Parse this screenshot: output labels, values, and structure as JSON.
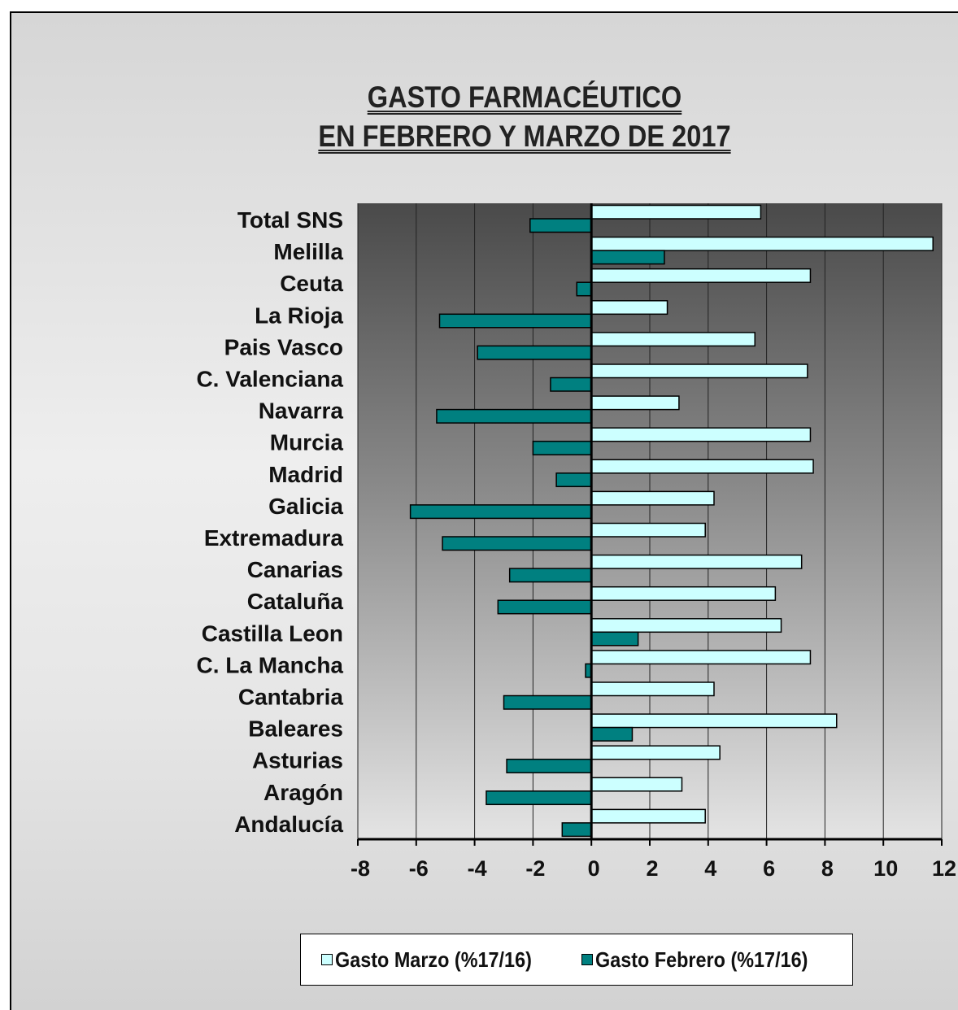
{
  "chart_data": {
    "type": "bar",
    "orientation": "horizontal",
    "title_lines": [
      "GASTO FARMACÉUTICO",
      "EN FEBRERO Y MARZO DE 2017"
    ],
    "categories": [
      "Total SNS",
      "Melilla",
      "Ceuta",
      "La Rioja",
      "Pais Vasco",
      "C. Valenciana",
      "Navarra",
      "Murcia",
      "Madrid",
      "Galicia",
      "Extremadura",
      "Canarias",
      "Cataluña",
      "Castilla Leon",
      "C. La Mancha",
      "Cantabria",
      "Baleares",
      "Asturias",
      "Aragón",
      "Andalucía"
    ],
    "series": [
      {
        "name": "Gasto Marzo  (%17/16)",
        "color": "#ccffff",
        "values": [
          5.8,
          11.7,
          7.5,
          2.6,
          5.6,
          7.4,
          3.0,
          7.5,
          7.6,
          4.2,
          3.9,
          7.2,
          6.3,
          6.5,
          7.5,
          4.2,
          8.4,
          4.4,
          3.1,
          3.9
        ]
      },
      {
        "name": "Gasto Febrero (%17/16)",
        "color": "#008080",
        "values": [
          -2.1,
          2.5,
          -0.5,
          -5.2,
          -3.9,
          -1.4,
          -5.3,
          -2.0,
          -1.2,
          -6.2,
          -5.1,
          -2.8,
          -3.2,
          1.6,
          -0.2,
          -3.0,
          1.4,
          -2.9,
          -3.6,
          -1.0
        ]
      }
    ],
    "xlim": [
      -8,
      12
    ],
    "xticks": [
      "-8",
      "-6",
      "-4",
      "-2",
      "0",
      "2",
      "4",
      "6",
      "8",
      "10",
      "12"
    ],
    "grid": "vertical",
    "legend_position": "bottom"
  }
}
